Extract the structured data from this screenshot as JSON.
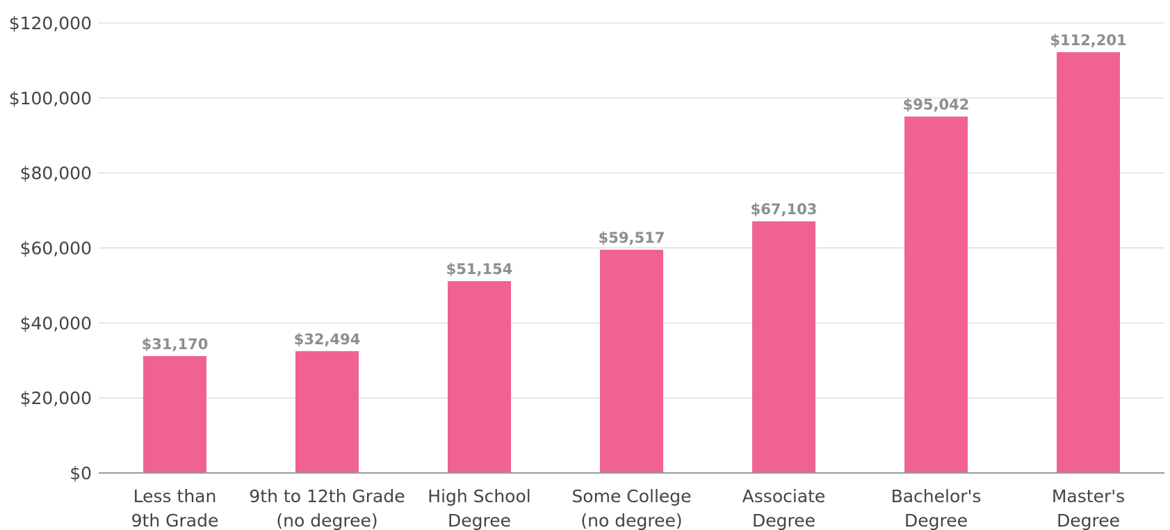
{
  "chart_data": {
    "type": "bar",
    "categories": [
      [
        "Less than",
        "9th Grade"
      ],
      [
        "9th to 12th Grade",
        "(no degree)"
      ],
      [
        "High School",
        "Degree"
      ],
      [
        "Some College",
        "(no degree)"
      ],
      [
        "Associate",
        "Degree"
      ],
      [
        "Bachelor's",
        "Degree"
      ],
      [
        "Master's",
        "Degree"
      ]
    ],
    "values": [
      31170,
      32494,
      51154,
      59517,
      67103,
      95042,
      112201
    ],
    "data_labels": [
      "$31,170",
      "$32,494",
      "$51,154",
      "$59,517",
      "$67,103",
      "$95,042",
      "$112,201"
    ],
    "y_ticks": [
      {
        "value": 0,
        "label": "$0"
      },
      {
        "value": 20000,
        "label": "$20,000"
      },
      {
        "value": 40000,
        "label": "$40,000"
      },
      {
        "value": 60000,
        "label": "$60,000"
      },
      {
        "value": 80000,
        "label": "$80,000"
      },
      {
        "value": 100000,
        "label": "$100,000"
      },
      {
        "value": 120000,
        "label": "$120,000"
      }
    ],
    "ylim": [
      0,
      120000
    ],
    "title": "",
    "xlabel": "",
    "ylabel": "",
    "grid": true,
    "bar_color": "#f06292",
    "label_color": "#8e8e8e"
  }
}
